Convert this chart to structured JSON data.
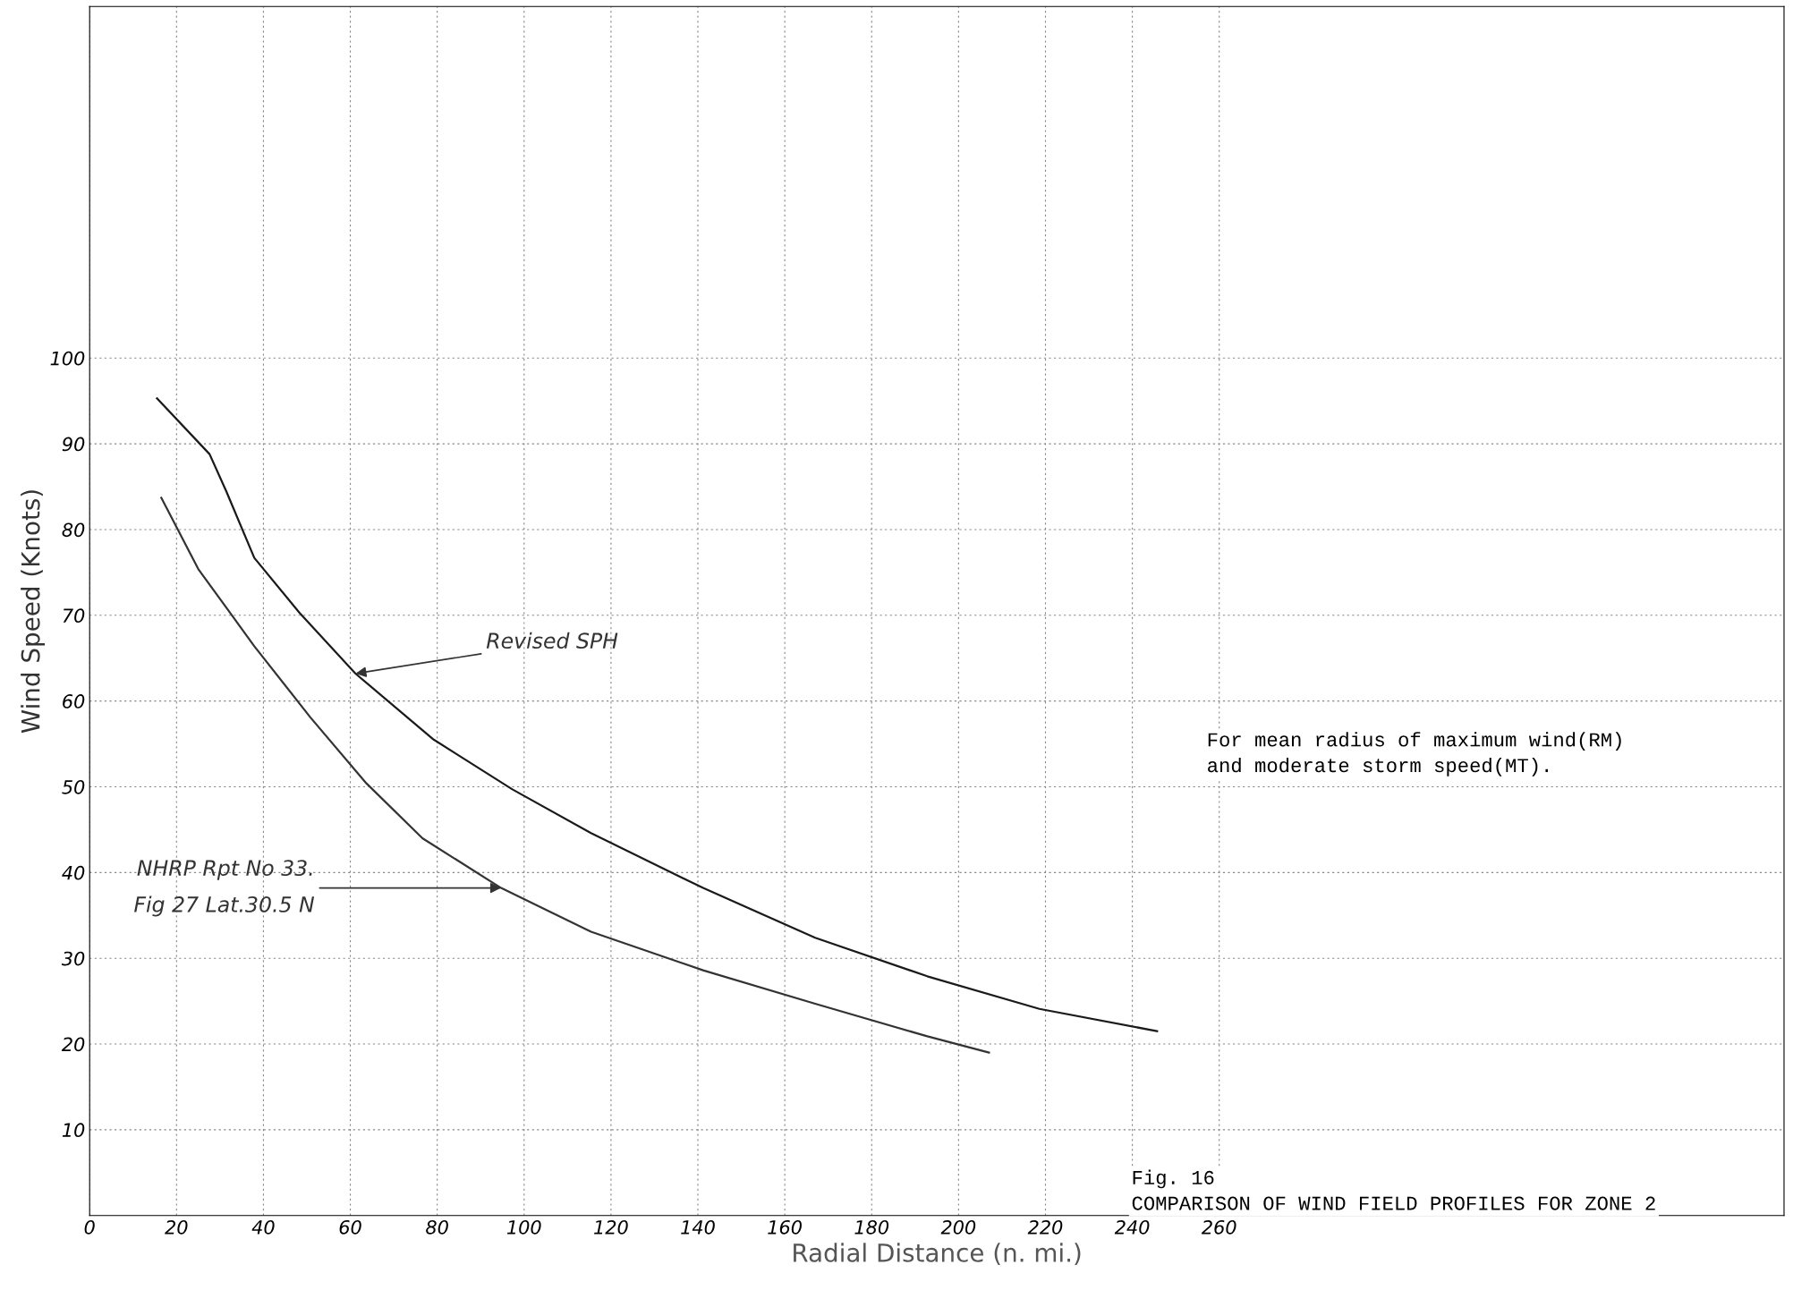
{
  "chart_data": {
    "type": "line",
    "xlabel": "Radial Distance (n. mi.)",
    "ylabel": "Wind Speed (Knots)",
    "xlim": [
      0,
      390
    ],
    "ylim": [
      0,
      141
    ],
    "xticks": [
      0,
      20,
      40,
      60,
      80,
      100,
      120,
      140,
      160,
      180,
      200,
      220,
      240,
      260
    ],
    "yticks": [
      10,
      20,
      30,
      40,
      50,
      60,
      70,
      80,
      90,
      100
    ],
    "grid": true,
    "line_style": "solid",
    "marker": "none",
    "series": [
      {
        "color": "#1a1a1a",
        "x": [
          15.5,
          27.6,
          31.5,
          37.9,
          48.3,
          61.2,
          79.2,
          97.3,
          115.4,
          141.2,
          167,
          192.8,
          218.6,
          245.7
        ],
        "values": [
          95.3,
          88.8,
          84.4,
          76.7,
          70.3,
          63.2,
          55.5,
          49.7,
          44.6,
          38.2,
          32.4,
          27.9,
          24.1,
          21.5
        ]
      },
      {
        "color": "#333333",
        "x": [
          16.5,
          25,
          37.9,
          50.8,
          63.7,
          76.6,
          94.7,
          115.4,
          141.2,
          167,
          192.8,
          207
        ],
        "values": [
          83.7,
          75.4,
          66.4,
          58.1,
          50.4,
          44.0,
          38.2,
          33.1,
          28.6,
          24.7,
          20.9,
          19.0
        ]
      }
    ],
    "annotations": [
      {
        "text": "Revised SPH",
        "x": 61.2,
        "y": 63.2
      },
      {
        "text": "NHRP Rpt No 33.\nFig 27 Lat.30.5 N",
        "x": 94.7,
        "y": 38.2
      },
      "For mean radius of maximum wind(RM)\nand moderate storm speed(MT).",
      "Fig. 16\nCOMPARISON OF WIND FIELD PROFILES FOR ZONE 2"
    ]
  }
}
